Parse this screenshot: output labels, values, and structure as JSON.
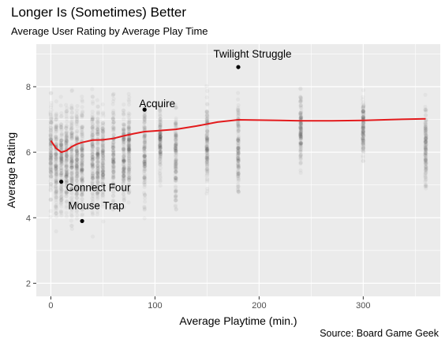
{
  "chart_data": {
    "type": "scatter",
    "title": "Longer Is (Sometimes) Better",
    "subtitle": "Average User Rating by Average Play Time",
    "caption": "Source: Board Game Geek",
    "xlabel": "Average Playtime (min.)",
    "ylabel": "Average Rating",
    "xlim": [
      -14,
      374
    ],
    "ylim": [
      1.6,
      9.3
    ],
    "x_ticks": [
      0,
      100,
      200,
      300
    ],
    "y_ticks": [
      2,
      4,
      6,
      8
    ],
    "grid": true,
    "legend": "none",
    "colors": {
      "panel": "#ebebeb",
      "grid": "#ffffff",
      "points": "#000000",
      "trend": "#e31a1c"
    },
    "point_columns": [
      {
        "x": 0,
        "min": 3.6,
        "max": 8.3
      },
      {
        "x": 5,
        "min": 3.3,
        "max": 8.0
      },
      {
        "x": 10,
        "min": 3.0,
        "max": 8.3
      },
      {
        "x": 15,
        "min": 3.2,
        "max": 8.3
      },
      {
        "x": 20,
        "min": 2.9,
        "max": 8.6
      },
      {
        "x": 25,
        "min": 3.0,
        "max": 8.4
      },
      {
        "x": 30,
        "min": 2.8,
        "max": 8.5
      },
      {
        "x": 40,
        "min": 3.0,
        "max": 8.6
      },
      {
        "x": 45,
        "min": 3.0,
        "max": 8.6
      },
      {
        "x": 50,
        "min": 3.4,
        "max": 8.3
      },
      {
        "x": 60,
        "min": 3.0,
        "max": 8.8
      },
      {
        "x": 70,
        "min": 3.6,
        "max": 8.3
      },
      {
        "x": 75,
        "min": 3.8,
        "max": 8.3
      },
      {
        "x": 90,
        "min": 3.3,
        "max": 8.6
      },
      {
        "x": 105,
        "min": 4.6,
        "max": 8.1
      },
      {
        "x": 120,
        "min": 3.4,
        "max": 8.5
      },
      {
        "x": 150,
        "min": 4.2,
        "max": 8.4
      },
      {
        "x": 180,
        "min": 3.7,
        "max": 8.6
      },
      {
        "x": 240,
        "min": 4.8,
        "max": 8.5
      },
      {
        "x": 300,
        "min": 5.2,
        "max": 8.3
      },
      {
        "x": 360,
        "min": 4.0,
        "max": 8.1
      }
    ],
    "trend": {
      "x": [
        0,
        5,
        10,
        15,
        20,
        25,
        30,
        40,
        50,
        60,
        70,
        80,
        90,
        100,
        120,
        140,
        160,
        180,
        200,
        220,
        240,
        270,
        300,
        330,
        360
      ],
      "y": [
        6.35,
        6.12,
        6.0,
        6.05,
        6.17,
        6.25,
        6.3,
        6.37,
        6.38,
        6.42,
        6.5,
        6.57,
        6.63,
        6.65,
        6.7,
        6.8,
        6.92,
        6.99,
        6.98,
        6.97,
        6.96,
        6.96,
        6.97,
        7.0,
        7.02
      ]
    },
    "highlighted": [
      {
        "name": "Twilight Struggle",
        "x": 180,
        "y": 8.6
      },
      {
        "name": "Acquire",
        "x": 90,
        "y": 7.3
      },
      {
        "name": "Connect Four",
        "x": 10,
        "y": 5.1
      },
      {
        "name": "Mouse Trap",
        "x": 30,
        "y": 3.9
      }
    ]
  }
}
